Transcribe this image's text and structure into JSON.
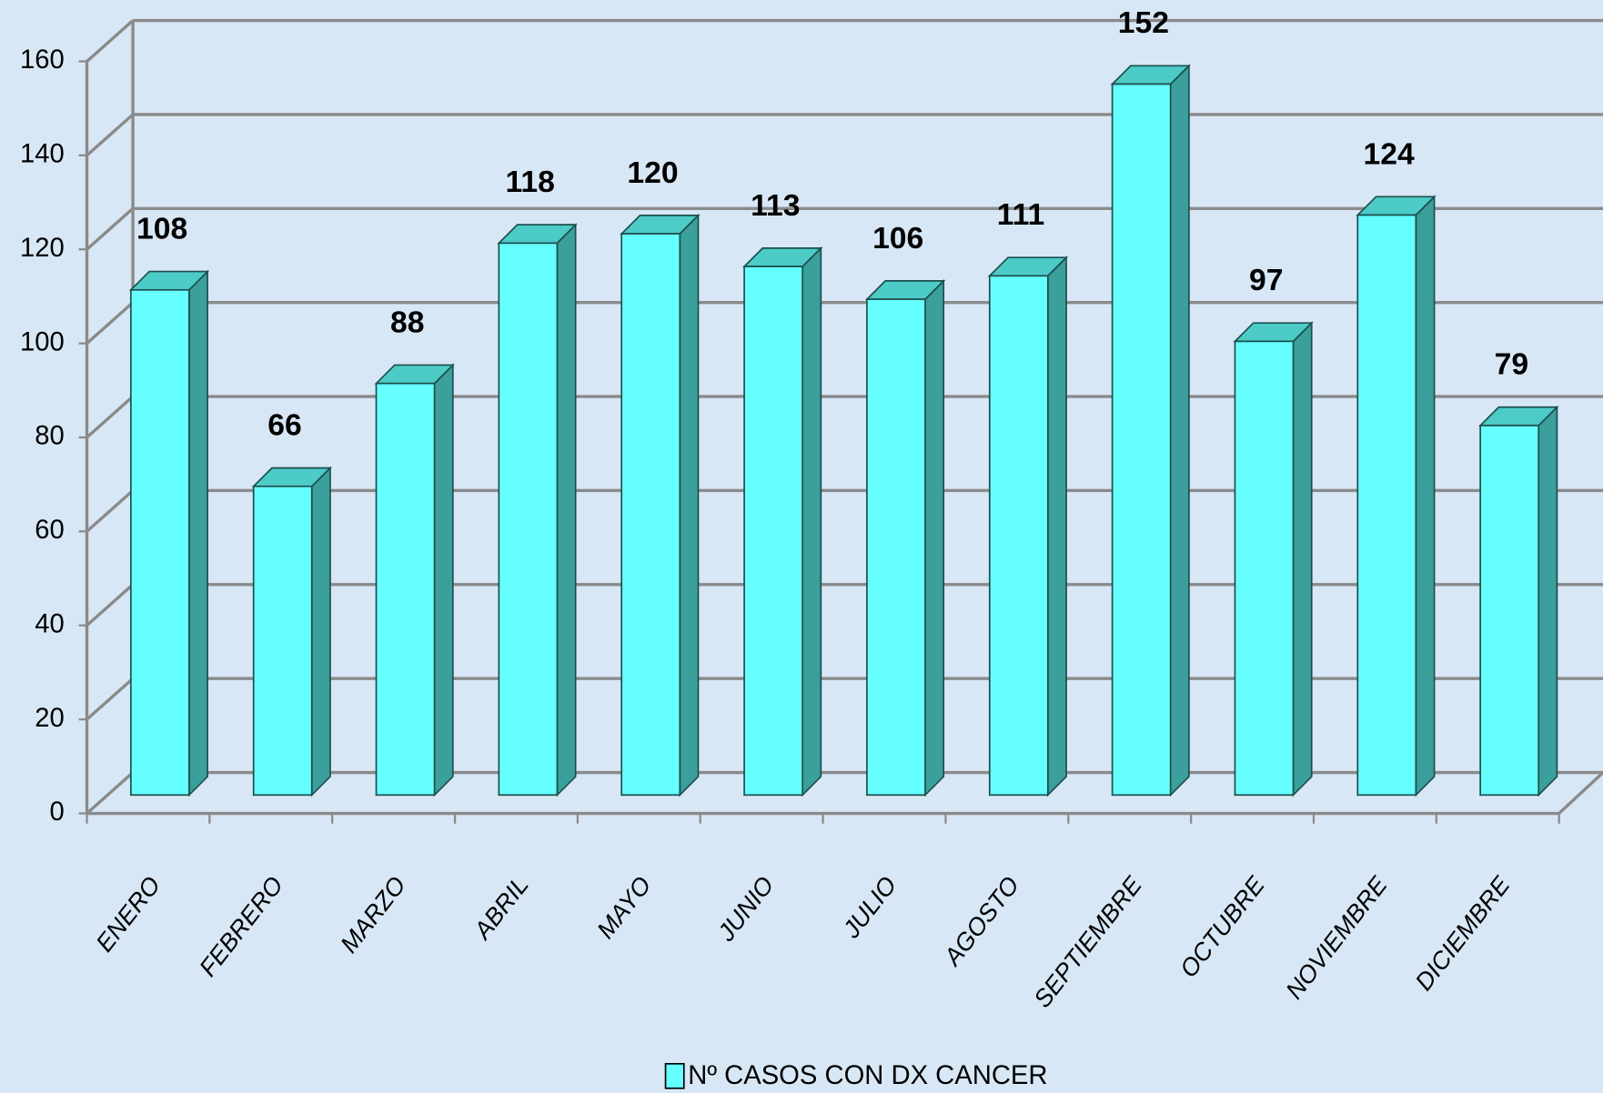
{
  "chart_data": {
    "type": "bar3d",
    "categories": [
      "ENERO",
      "FEBRERO",
      "MARZO",
      "ABRIL",
      "MAYO",
      "JUNIO",
      "JULIO",
      "AGOSTO",
      "SEPTIEMBRE",
      "OCTUBRE",
      "NOVIEMBRE",
      "DICIEMBRE"
    ],
    "series": [
      {
        "name": "Nº CASOS CON DX CANCER",
        "color": "#66ffff",
        "values": [
          108,
          66,
          88,
          118,
          120,
          113,
          106,
          111,
          152,
          97,
          124,
          79
        ]
      }
    ],
    "ylim": [
      0,
      160
    ],
    "yticks": [
      0,
      20,
      40,
      60,
      80,
      100,
      120,
      140,
      160
    ],
    "grid": true,
    "data_labels": true,
    "legend": "bottom"
  }
}
